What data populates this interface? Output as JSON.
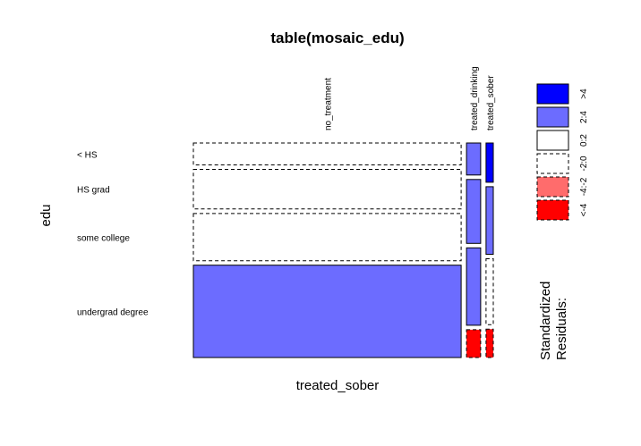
{
  "chart_data": {
    "type": "mosaic",
    "title": "table(mosaic_edu)",
    "xlabel": "treated_sober",
    "ylabel": "edu",
    "columns": [
      "no_treatment",
      "treated_drinking",
      "treated_sober"
    ],
    "rows": [
      "< HS",
      "HS grad",
      "some college",
      "undergrad degree"
    ],
    "column_shares": [
      0.926,
      0.049,
      0.025
    ],
    "cells": [
      [
        {
          "share": 0.109,
          "residual_class": "-2:0"
        },
        {
          "share": 0.197,
          "residual_class": "-2:0"
        },
        {
          "share": 0.235,
          "residual_class": "-2:0"
        },
        {
          "share": 0.459,
          "residual_class": "2:4"
        }
      ],
      [
        {
          "share": 0.159,
          "residual_class": "2:4"
        },
        {
          "share": 0.318,
          "residual_class": "2:4"
        },
        {
          "share": 0.385,
          "residual_class": "2:4"
        },
        {
          "share": 0.138,
          "residual_class": "<-4"
        }
      ],
      [
        {
          "share": 0.195,
          "residual_class": ">4"
        },
        {
          "share": 0.336,
          "residual_class": "2:4"
        },
        {
          "share": 0.328,
          "residual_class": "-2:0"
        },
        {
          "share": 0.141,
          "residual_class": "<-4"
        }
      ]
    ],
    "legend": {
      "title_lines": [
        "Standardized",
        "Residuals:"
      ],
      "entries": [
        {
          "label": ">4",
          "fill": "#0000FF",
          "dashed": false
        },
        {
          "label": "2:4",
          "fill": "#6C6CFF",
          "dashed": false
        },
        {
          "label": "0:2",
          "fill": "#FFFFFF",
          "dashed": false
        },
        {
          "label": "-2:0",
          "fill": "#FFFFFF",
          "dashed": true
        },
        {
          "label": "-4:-2",
          "fill": "#FF6C6C",
          "dashed": true
        },
        {
          "label": "<-4",
          "fill": "#FF0000",
          "dashed": true
        }
      ]
    }
  }
}
